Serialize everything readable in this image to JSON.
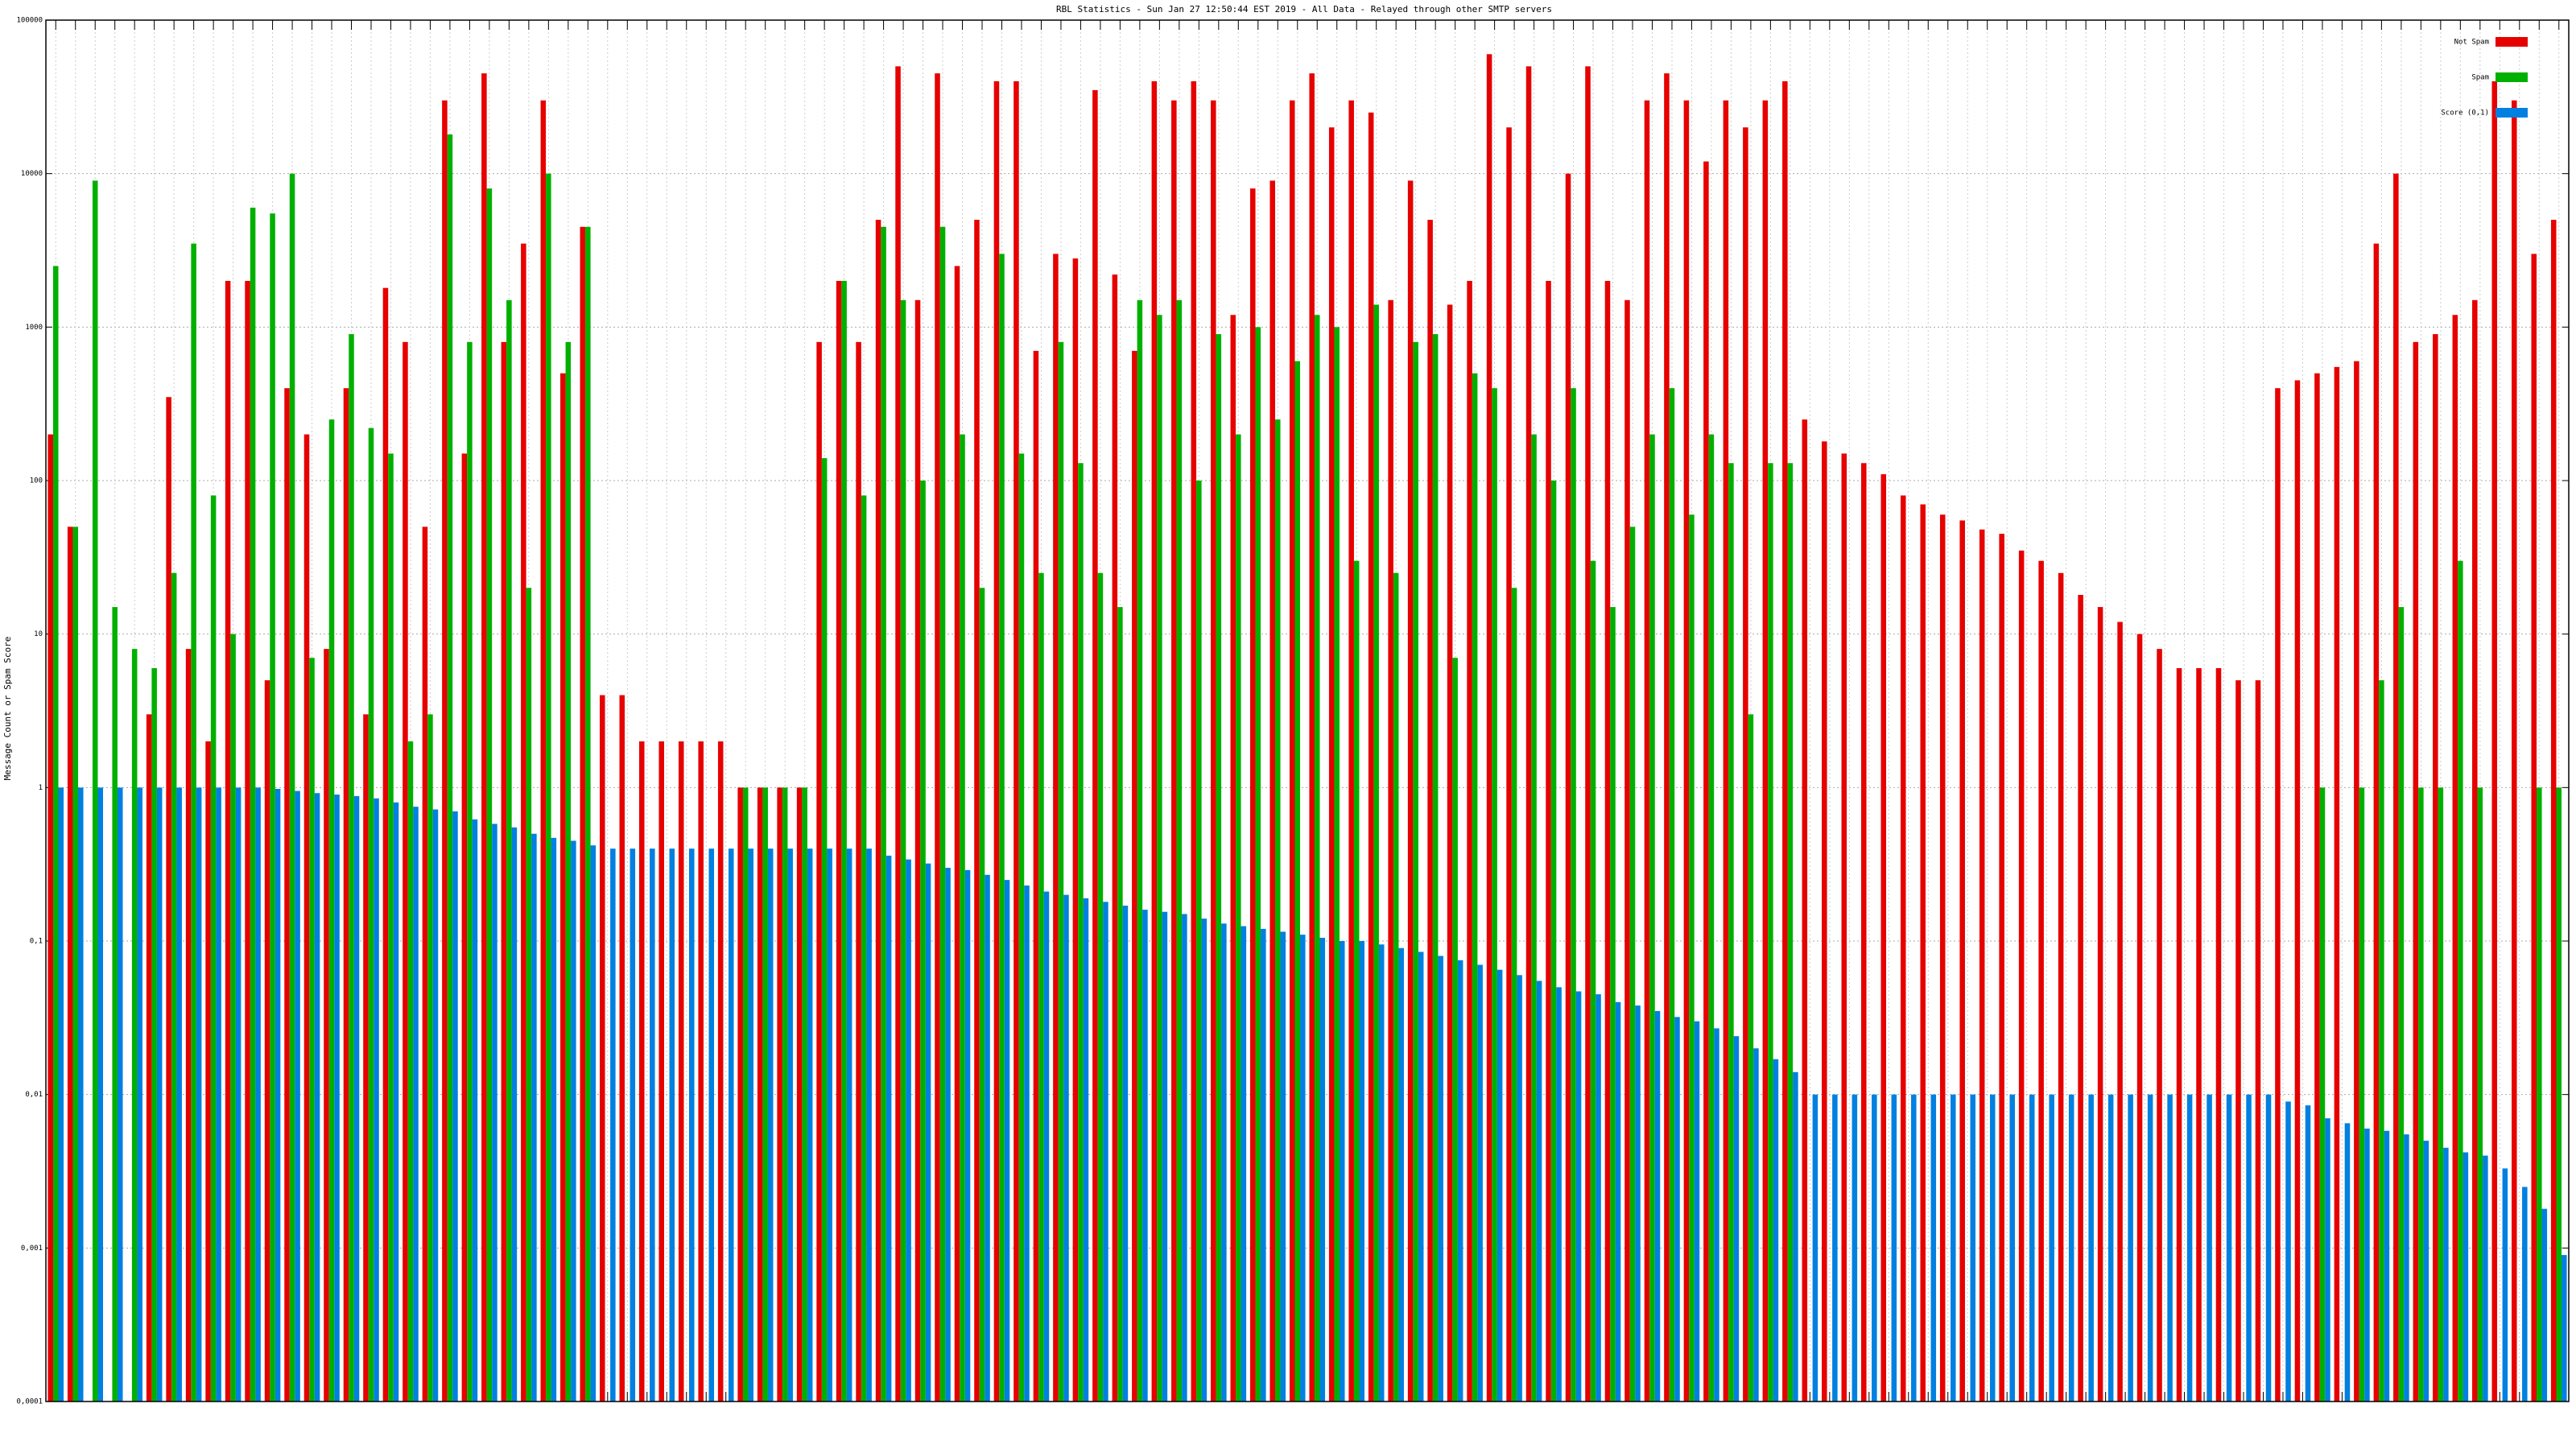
{
  "chart_data": {
    "type": "bar",
    "title": "RBL Statistics - Sun Jan 27 12:50:44 EST 2019 - All Data - Relayed through other SMTP servers",
    "y_label": "Message Count or Spam Score",
    "log_scale": true,
    "grid": true,
    "legend": "top-right",
    "ylim": [
      0.0001,
      100000
    ],
    "yticks": [
      {
        "value": 0.0001,
        "label": "0,0001"
      },
      {
        "value": 0.001,
        "label": "0,001"
      },
      {
        "value": 0.01,
        "label": "0,01"
      },
      {
        "value": 0.1,
        "label": "0,1"
      },
      1,
      10,
      100,
      1000,
      10000,
      100000
    ],
    "categories": [
      null,
      null,
      null,
      null,
      null,
      null,
      null,
      null,
      null,
      null,
      null,
      null,
      null,
      null,
      null,
      null,
      null,
      null,
      null,
      null,
      null,
      null,
      null,
      null,
      null,
      null,
      null,
      null,
      null,
      null,
      null,
      null,
      null,
      null,
      null,
      null,
      null,
      null,
      null,
      null,
      null,
      null,
      null,
      null,
      null,
      null,
      null,
      null,
      null,
      null,
      null,
      null,
      null,
      null,
      null,
      null,
      null,
      null,
      null,
      null,
      null,
      null,
      null,
      null,
      null,
      null,
      null,
      null,
      null,
      null,
      null,
      null,
      null,
      null,
      null,
      null,
      null,
      null,
      null,
      null,
      null,
      null,
      null,
      null,
      null,
      null,
      null,
      null,
      null,
      null,
      null,
      null,
      null,
      null,
      null,
      null,
      null,
      null,
      null,
      null,
      null,
      null,
      null,
      null,
      null,
      null,
      null,
      null,
      null,
      null,
      null,
      null,
      null,
      null,
      null,
      null,
      null,
      null,
      null,
      null,
      null,
      null,
      null,
      null,
      null,
      null,
      null,
      null
    ],
    "series": [
      {
        "name": "Not Spam",
        "color": "#e60000",
        "values": [
          200,
          50,
          null,
          null,
          null,
          3,
          350,
          8,
          2,
          2000,
          2000,
          5,
          400,
          200,
          8,
          400,
          3,
          1800,
          800,
          50,
          30000,
          150,
          45000,
          800,
          3500,
          30000,
          500,
          4500,
          4,
          4,
          2,
          2,
          2,
          2,
          2,
          1,
          1,
          1,
          1,
          800,
          2000,
          800,
          5000,
          50000,
          1500,
          45000,
          2500,
          5000,
          40000,
          40000,
          700,
          3000,
          2800,
          35000,
          2200,
          700,
          40000,
          30000,
          40000,
          30000,
          1200,
          8000,
          9000,
          30000,
          45000,
          20000,
          30000,
          25000,
          1500,
          9000,
          5000,
          1400,
          2000,
          60000,
          20000,
          50000,
          2000,
          10000,
          50000,
          2000,
          1500,
          30000,
          45000,
          30000,
          12000,
          30000,
          20000,
          30000,
          40000,
          250,
          180,
          150,
          130,
          110,
          80,
          70,
          60,
          55,
          48,
          45,
          35,
          30,
          25,
          18,
          15,
          12,
          10,
          8,
          6,
          6,
          6,
          5,
          5,
          400,
          450,
          500,
          550,
          600,
          3500,
          10000,
          800,
          900,
          1200,
          1500,
          40000,
          30000,
          3000,
          5000
        ]
      },
      {
        "name": "Spam",
        "color": "#00b000",
        "values": [
          2500,
          50,
          9000,
          15,
          8,
          6,
          25,
          3500,
          80,
          10,
          6000,
          5500,
          10000,
          7,
          250,
          900,
          220,
          150,
          2,
          3,
          18000,
          800,
          8000,
          1500,
          20,
          10000,
          800,
          4500,
          null,
          null,
          null,
          null,
          null,
          null,
          null,
          1,
          1,
          1,
          1,
          140,
          2000,
          80,
          4500,
          1500,
          100,
          4500,
          200,
          20,
          3000,
          150,
          25,
          800,
          130,
          25,
          15,
          1500,
          1200,
          1500,
          100,
          900,
          200,
          1000,
          250,
          600,
          1200,
          1000,
          30,
          1400,
          25,
          800,
          900,
          7,
          500,
          400,
          20,
          200,
          100,
          400,
          30,
          15,
          50,
          200,
          400,
          60,
          200,
          130,
          3,
          130,
          130,
          null,
          null,
          null,
          null,
          null,
          null,
          null,
          null,
          null,
          null,
          null,
          null,
          null,
          null,
          null,
          null,
          null,
          null,
          null,
          null,
          null,
          null,
          null,
          null,
          null,
          null,
          1,
          null,
          1,
          5,
          15,
          1,
          1,
          30,
          1,
          null,
          null,
          1,
          1
        ]
      },
      {
        "name": "Score (0,1)",
        "color": "#0080e0",
        "values": [
          1,
          1,
          1,
          1,
          1,
          1,
          1,
          1,
          1,
          1,
          1,
          0.98,
          0.95,
          0.92,
          0.9,
          0.88,
          0.85,
          0.8,
          0.75,
          0.72,
          0.7,
          0.62,
          0.58,
          0.55,
          0.5,
          0.47,
          0.45,
          0.42,
          0.4,
          0.4,
          0.4,
          0.4,
          0.4,
          0.4,
          0.4,
          0.4,
          0.4,
          0.4,
          0.4,
          0.4,
          0.4,
          0.4,
          0.36,
          0.34,
          0.32,
          0.3,
          0.29,
          0.27,
          0.25,
          0.23,
          0.21,
          0.2,
          0.19,
          0.18,
          0.17,
          0.16,
          0.155,
          0.15,
          0.14,
          0.13,
          0.125,
          0.12,
          0.115,
          0.11,
          0.105,
          0.1,
          0.1,
          0.095,
          0.09,
          0.085,
          0.08,
          0.075,
          0.07,
          0.065,
          0.06,
          0.055,
          0.05,
          0.047,
          0.045,
          0.04,
          0.038,
          0.035,
          0.032,
          0.03,
          0.027,
          0.024,
          0.02,
          0.017,
          0.014,
          0.01,
          0.01,
          0.01,
          0.01,
          0.01,
          0.01,
          0.01,
          0.01,
          0.01,
          0.01,
          0.01,
          0.01,
          0.01,
          0.01,
          0.01,
          0.01,
          0.01,
          0.01,
          0.01,
          0.01,
          0.01,
          0.01,
          0.01,
          0.01,
          0.009,
          0.0085,
          0.007,
          0.0065,
          0.006,
          0.0058,
          0.0055,
          0.005,
          0.0045,
          0.0042,
          0.004,
          0.0033,
          0.0025,
          0.0018,
          0.0009
        ]
      }
    ]
  }
}
